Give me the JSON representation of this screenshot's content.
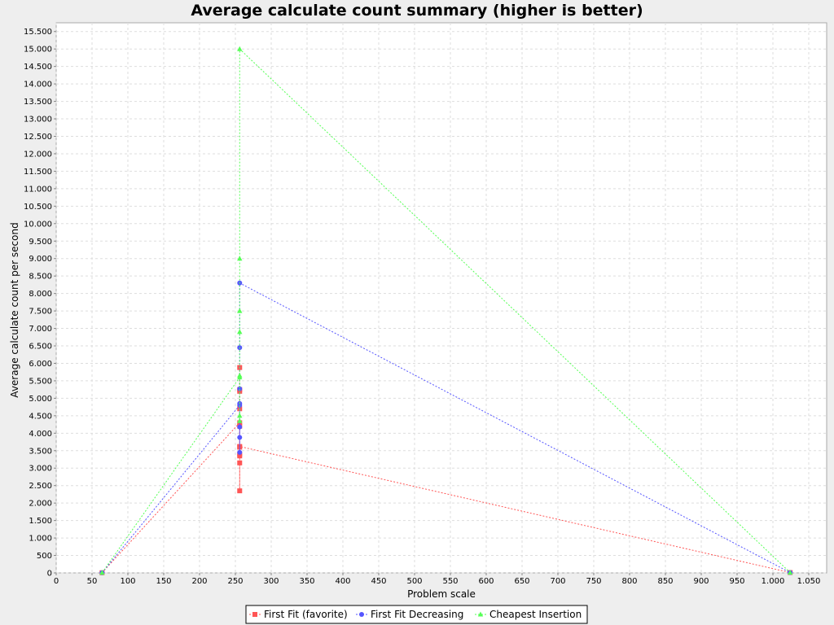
{
  "chart_data": {
    "type": "scatter",
    "title": "Average calculate count summary (higher is better)",
    "xlabel": "Problem scale",
    "ylabel": "Average calculate count per second",
    "xlim": [
      0,
      1075
    ],
    "ylim": [
      0,
      15750
    ],
    "x_ticks": [
      0,
      50,
      100,
      150,
      200,
      250,
      300,
      350,
      400,
      450,
      500,
      550,
      600,
      650,
      700,
      750,
      800,
      850,
      900,
      950,
      1000,
      1050
    ],
    "x_tick_labels": [
      "0",
      "50",
      "100",
      "150",
      "200",
      "250",
      "300",
      "350",
      "400",
      "450",
      "500",
      "550",
      "600",
      "650",
      "700",
      "750",
      "800",
      "850",
      "900",
      "950",
      "1.000",
      "1.050"
    ],
    "y_ticks": [
      0,
      500,
      1000,
      1500,
      2000,
      2500,
      3000,
      3500,
      4000,
      4500,
      5000,
      5500,
      6000,
      6500,
      7000,
      7500,
      8000,
      8500,
      9000,
      9500,
      10000,
      10500,
      11000,
      11500,
      12000,
      12500,
      13000,
      13500,
      14000,
      14500,
      15000,
      15500
    ],
    "y_tick_labels": [
      "0",
      "500",
      "1.000",
      "1.500",
      "2.000",
      "2.500",
      "3.000",
      "3.500",
      "4.000",
      "4.500",
      "5.000",
      "5.500",
      "6.000",
      "6.500",
      "7.000",
      "7.500",
      "8.000",
      "8.500",
      "9.000",
      "9.500",
      "10.000",
      "10.500",
      "11.000",
      "11.500",
      "12.000",
      "12.500",
      "13.000",
      "13.500",
      "14.000",
      "14.500",
      "15.000",
      "15.500"
    ],
    "grid": true,
    "legend_position": "bottom",
    "series": [
      {
        "name": "First Fit (favorite)",
        "color": "#ff5555",
        "marker": "square",
        "points": [
          [
            64,
            5
          ],
          [
            256,
            4300
          ],
          [
            256,
            2350
          ],
          [
            256,
            3150
          ],
          [
            256,
            3350
          ],
          [
            256,
            3400
          ],
          [
            256,
            3600
          ],
          [
            256,
            4200
          ],
          [
            256,
            4700
          ],
          [
            256,
            5200
          ],
          [
            256,
            5250
          ],
          [
            256,
            5880
          ],
          [
            256,
            3620
          ],
          [
            1024,
            10
          ]
        ]
      },
      {
        "name": "First Fit Decreasing",
        "color": "#5555ff",
        "marker": "circle",
        "points": [
          [
            64,
            5
          ],
          [
            256,
            4800
          ],
          [
            256,
            3450
          ],
          [
            256,
            3880
          ],
          [
            256,
            4180
          ],
          [
            256,
            4850
          ],
          [
            256,
            5270
          ],
          [
            256,
            6450
          ],
          [
            256,
            8300
          ],
          [
            1024,
            10
          ]
        ]
      },
      {
        "name": "Cheapest Insertion",
        "color": "#55ff55",
        "marker": "triangle",
        "points": [
          [
            64,
            5
          ],
          [
            256,
            5600
          ],
          [
            256,
            4350
          ],
          [
            256,
            4500
          ],
          [
            256,
            5650
          ],
          [
            256,
            6900
          ],
          [
            256,
            7500
          ],
          [
            256,
            9000
          ],
          [
            256,
            15000
          ],
          [
            1024,
            10
          ]
        ]
      }
    ]
  }
}
